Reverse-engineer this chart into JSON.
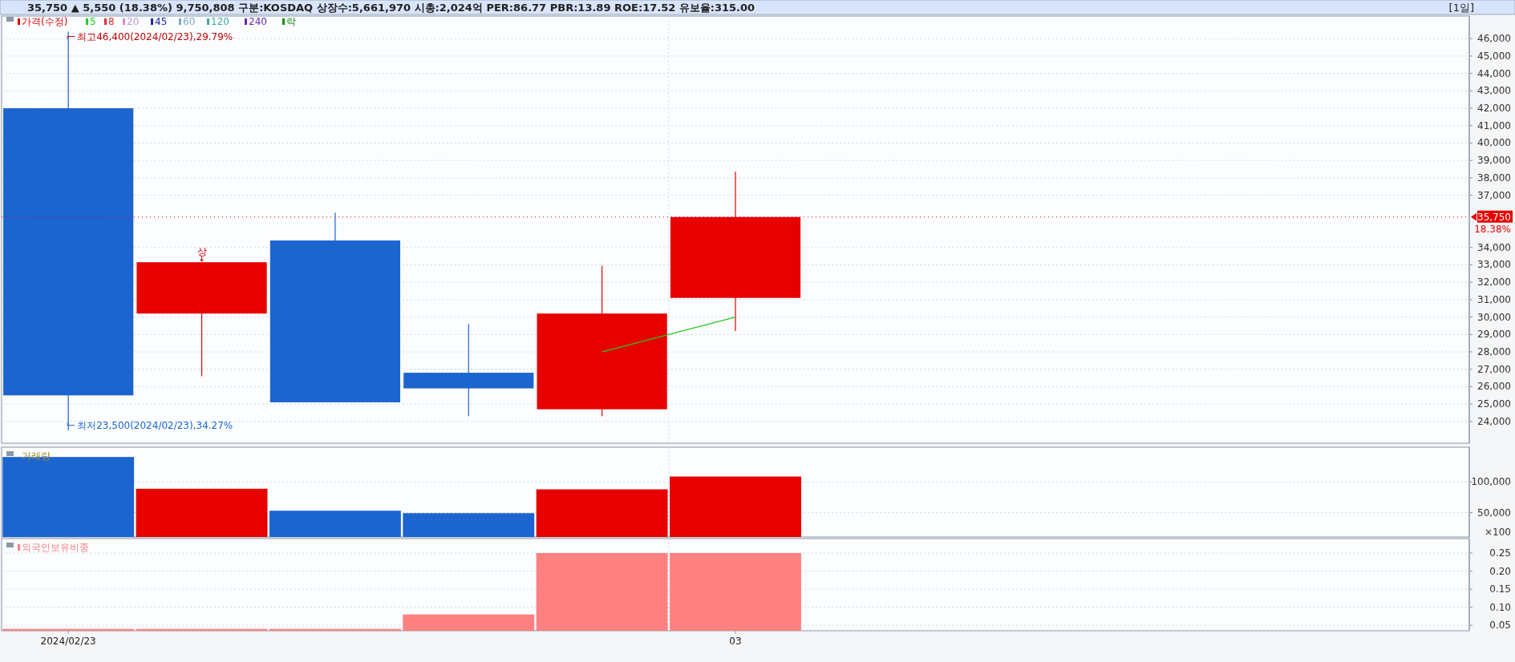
{
  "chart_data": [
    {
      "type": "candlestick",
      "title": "35,750 ▲ 5,550 (18.38%) 9,750,808 구분:KOSDAQ 상장수:5,661,970 시총:2,024억 PER:86.77 PBR:13.89 ROE:17.52 유보율:315.00",
      "subtitle": "[1일]",
      "legend_title": "가격(수정)",
      "categories": [
        "2024/02/23",
        null,
        null,
        null,
        null,
        "03",
        null,
        null,
        null,
        null,
        null
      ],
      "ohlc": [
        [
          42000,
          46400,
          23500,
          25500
        ],
        [
          30200,
          33150,
          26600,
          33150
        ],
        [
          34400,
          36000,
          25100,
          25100
        ],
        [
          26800,
          29600,
          24300,
          25900
        ],
        [
          24700,
          32950,
          24300,
          30200
        ],
        [
          31100,
          38350,
          29200,
          35750
        ],
        null,
        null,
        null,
        null,
        null
      ],
      "colors": [
        "#1c64d0",
        "#e60000",
        "#1c64d0",
        "#1c64d0",
        "#e60000",
        "#e60000",
        null,
        null,
        null,
        null,
        null
      ],
      "series": [
        {
          "name": "5",
          "type": "line",
          "color": "#22cc22",
          "values": [
            null,
            null,
            null,
            null,
            28000,
            30000,
            null,
            null,
            null,
            null,
            null
          ]
        },
        {
          "name": "8",
          "type": "line",
          "color": "#e03030",
          "values": [
            null,
            null,
            null,
            null,
            null,
            null,
            null,
            null,
            null,
            null,
            null
          ]
        },
        {
          "name": "20",
          "type": "line",
          "color": "#c890d8",
          "values": [
            null,
            null,
            null,
            null,
            null,
            null,
            null,
            null,
            null,
            null,
            null
          ]
        },
        {
          "name": "45",
          "type": "line",
          "color": "#1a2a9a",
          "values": [
            null,
            null,
            null,
            null,
            null,
            null,
            null,
            null,
            null,
            null,
            null
          ]
        },
        {
          "name": "60",
          "type": "line",
          "color": "#80a8c8",
          "values": [
            null,
            null,
            null,
            null,
            null,
            null,
            null,
            null,
            null,
            null,
            null
          ]
        },
        {
          "name": "120",
          "type": "line",
          "color": "#40a8a0",
          "values": [
            null,
            null,
            null,
            null,
            null,
            null,
            null,
            null,
            null,
            null,
            null
          ]
        },
        {
          "name": "240",
          "type": "line",
          "color": "#6a2aa8",
          "values": [
            null,
            null,
            null,
            null,
            null,
            null,
            null,
            null,
            null,
            null,
            null
          ]
        },
        {
          "name": "락",
          "type": "line",
          "color": "#108a10",
          "values": [
            null,
            null,
            null,
            null,
            null,
            null,
            null,
            null,
            null,
            null,
            null
          ]
        }
      ],
      "ylim": [
        22750,
        47300
      ],
      "yticks": [
        {
          "value": 24000,
          "label": "24,000"
        },
        {
          "value": 25000,
          "label": "25,000"
        },
        {
          "value": 26000,
          "label": "26,000"
        },
        {
          "value": 27000,
          "label": "27,000"
        },
        {
          "value": 28000,
          "label": "28,000"
        },
        {
          "value": 29000,
          "label": "29,000"
        },
        {
          "value": 30000,
          "label": "30,000"
        },
        {
          "value": 31000,
          "label": "31,000"
        },
        {
          "value": 32000,
          "label": "32,000"
        },
        {
          "value": 33000,
          "label": "33,000"
        },
        {
          "value": 34000,
          "label": "34,000"
        },
        {
          "value": 37000,
          "label": "37,000"
        },
        {
          "value": 38000,
          "label": "38,000"
        },
        {
          "value": 39000,
          "label": "39,000"
        },
        {
          "value": 40000,
          "label": "40,000"
        },
        {
          "value": 41000,
          "label": "41,000"
        },
        {
          "value": 42000,
          "label": "42,000"
        },
        {
          "value": 43000,
          "label": "43,000"
        },
        {
          "value": 44000,
          "label": "44,000"
        },
        {
          "value": 45000,
          "label": "45,000"
        },
        {
          "value": 46000,
          "label": "46,000"
        }
      ],
      "ref_lines": [
        {
          "axis": "y",
          "value": 35750,
          "label": "35,750",
          "color": "#e60000"
        }
      ],
      "annotations": [
        {
          "text": "최고46,400(2024/02/23),29.79%",
          "x": "2024/02/23",
          "y": 46400
        },
        {
          "text": "최저23,500(2024/02/23),34.27%",
          "x": "2024/02/23",
          "y": 23500
        },
        {
          "text": "상",
          "y": 33150
        },
        "18.38%"
      ],
      "grid": true,
      "legend": "top left",
      "tick_labels": "y"
    },
    {
      "type": "bar",
      "categories": [
        "2024/02/23",
        null,
        null,
        null,
        null,
        "03",
        null,
        null,
        null,
        null,
        null
      ],
      "series": [
        {
          "name": "거래량",
          "values": [
            141000,
            89000,
            53000,
            49000,
            88000,
            109000,
            null,
            null,
            null,
            null,
            null
          ],
          "colors": [
            "#1c64d0",
            "#e60000",
            "#1c64d0",
            "#1c64d0",
            "#e60000",
            "#e60000",
            null,
            null,
            null,
            null,
            null
          ]
        }
      ],
      "ylim": [
        10000,
        157000
      ],
      "yticks": [
        {
          "value": 50000,
          "label": "50,000"
        },
        {
          "value": 100000,
          "label": "100,000"
        }
      ],
      "ylabel": "×100",
      "grid": true,
      "legend": "top left",
      "tick_labels": "y"
    },
    {
      "type": "bar",
      "categories": [
        "2024/02/23",
        null,
        null,
        null,
        null,
        "03",
        null,
        null,
        null,
        null,
        null
      ],
      "series": [
        {
          "name": "외국인보유비중",
          "color": "#ff8080",
          "values": [
            0.04,
            0.04,
            0.04,
            0.08,
            0.25,
            0.25,
            null,
            null,
            null,
            null,
            null
          ]
        }
      ],
      "ylim": [
        0.035,
        0.29
      ],
      "yticks": [
        {
          "value": 0.05,
          "label": "0.05"
        },
        {
          "value": 0.1,
          "label": "0.10"
        },
        {
          "value": 0.15,
          "label": "0.15"
        },
        {
          "value": 0.2,
          "label": "0.20"
        },
        {
          "value": 0.25,
          "label": "0.25"
        }
      ],
      "grid": true,
      "legend": "top left"
    }
  ]
}
